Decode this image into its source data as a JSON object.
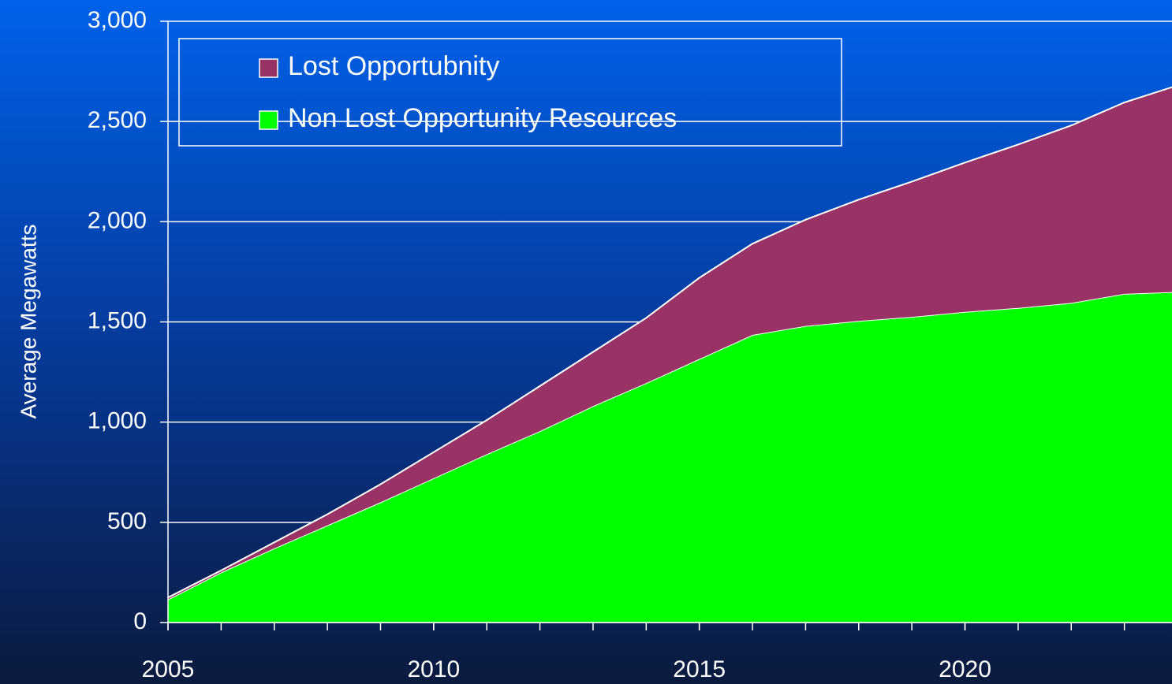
{
  "chart_data": {
    "type": "stacked_area",
    "y_label": "Average Megawatts",
    "x": [
      2005,
      2006,
      2007,
      2008,
      2009,
      2010,
      2011,
      2012,
      2013,
      2014,
      2015,
      2016,
      2017,
      2018,
      2019,
      2020,
      2021,
      2022,
      2023,
      2024
    ],
    "series": [
      {
        "name": "Non Lost Opportunity Resources",
        "color": "#00ff00",
        "values": [
          115,
          250,
          370,
          485,
          600,
          720,
          840,
          955,
          1080,
          1195,
          1315,
          1435,
          1480,
          1505,
          1525,
          1550,
          1570,
          1595,
          1640,
          1650
        ]
      },
      {
        "name": "Lost Opportubnity",
        "color": "#993366",
        "values": [
          10,
          10,
          30,
          55,
          90,
          130,
          170,
          225,
          270,
          325,
          405,
          455,
          530,
          605,
          675,
          745,
          815,
          885,
          955,
          1030
        ]
      }
    ],
    "xlim": [
      2005,
      2024
    ],
    "xticks": [
      2005,
      2010,
      2015,
      2020
    ],
    "ylim": [
      0,
      3000
    ],
    "yticks": [
      {
        "value": 0,
        "label": "0"
      },
      {
        "value": 500,
        "label": "500"
      },
      {
        "value": 1000,
        "label": "1,000"
      },
      {
        "value": 1500,
        "label": "1,500"
      },
      {
        "value": 2000,
        "label": "2,000"
      },
      {
        "value": 2500,
        "label": "2,500"
      },
      {
        "value": 3000,
        "label": "3,000"
      }
    ],
    "grid": true,
    "legend": "top-left"
  }
}
